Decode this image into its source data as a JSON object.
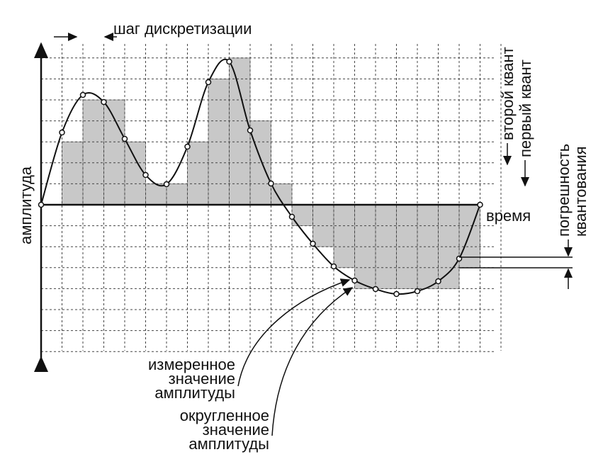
{
  "labels": {
    "step": "шаг дискретизации",
    "amplitude": "амплитуда",
    "time": "время",
    "second_quantum": "второй квант",
    "first_quantum": "первый квант",
    "error": [
      "погрешность",
      "квантования"
    ],
    "measured": [
      "измеренное",
      "значение",
      "амплитуды"
    ],
    "rounded": [
      "округленное",
      "значение",
      "амплитуды"
    ]
  }
}
